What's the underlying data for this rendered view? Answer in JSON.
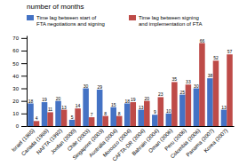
{
  "chart_data": {
    "type": "bar",
    "title": "number of months",
    "categories": [
      "Israel (1985)",
      "Canada (1988)",
      "NAFTA (1992)",
      "Jordan (2000)",
      "Chile (2003)",
      "Singapore (2003)",
      "Australia (2004)",
      "Morocco (2004)",
      "CAFTA-DR (2004)",
      "Bahrain (2004)",
      "Oman (2006)",
      "Peru (2006)",
      "Colombia (2006)",
      "Panama (2007)",
      "Korea (2007)"
    ],
    "series": [
      {
        "name": "Time lag between start of\nFTA negotiations and signing",
        "color": "#4472C4",
        "values": [
          18,
          19,
          20,
          5,
          30,
          29,
          15,
          18,
          13,
          9,
          10,
          25,
          30,
          38,
          13
        ]
      },
      {
        "name": "Time lag between signing\nand implementation of FTA",
        "color": "#BE4B48",
        "values": [
          4,
          11,
          13,
          14,
          7,
          8,
          8,
          19,
          20,
          23,
          35,
          33,
          66,
          52,
          57
        ]
      }
    ],
    "ylim": [
      0,
      72
    ],
    "yticks": [
      0,
      10,
      20,
      30,
      40,
      50,
      60,
      70
    ],
    "grid": false,
    "legend": "top",
    "data_labels": true
  }
}
